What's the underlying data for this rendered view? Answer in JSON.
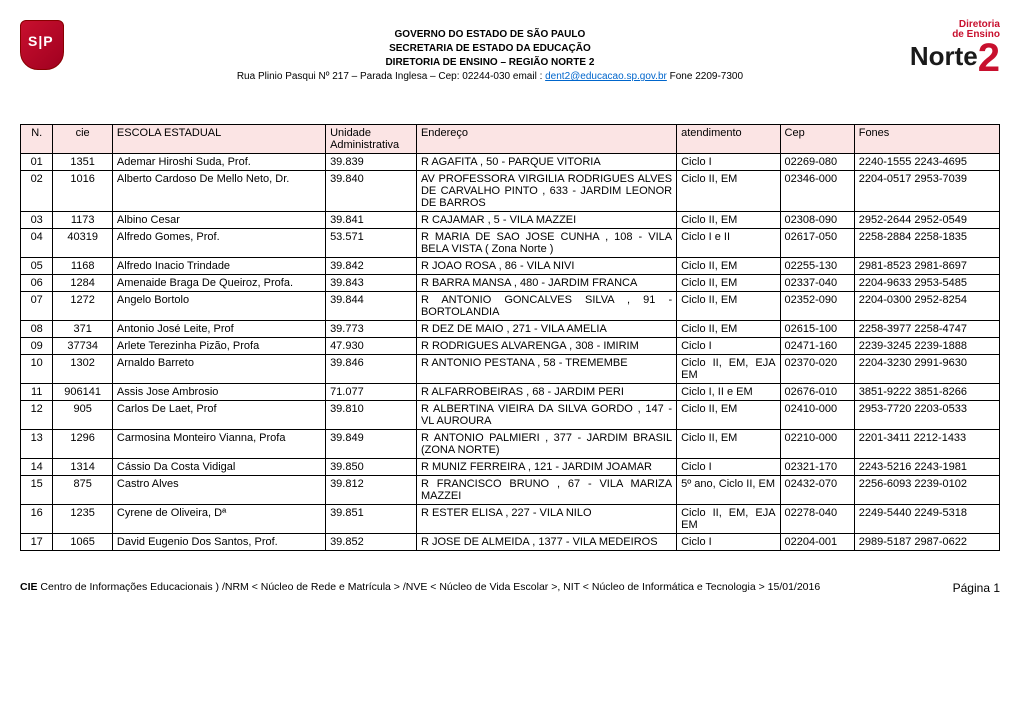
{
  "header": {
    "line1": "GOVERNO DO ESTADO DE SÃO PAULO",
    "line2": "SECRETARIA DE ESTADO DA EDUCAÇÃO",
    "line3": "DIRETORIA DE ENSINO – REGIÃO NORTE 2",
    "line4_pre": "Rua Plinio Pasqui Nº 217 – Parada Inglesa – Cep: 02244-030  email : ",
    "line4_link": "dent2@educacao.sp.gov.br",
    "line4_post": " Fone 2209-7300",
    "logo_small1": "Diretoria",
    "logo_small2": "de Ensino",
    "logo_big": "Norte",
    "logo_num": "2"
  },
  "columns": {
    "n": "N.",
    "cie": "cie",
    "escola": "ESCOLA ESTADUAL",
    "unidade": "Unidade Administrativa",
    "endereco": "Endereço",
    "atendimento": "atendimento",
    "cep": "Cep",
    "fones": "Fones"
  },
  "rows": [
    {
      "n": "01",
      "cie": "1351",
      "escola": "Ademar Hiroshi Suda, Prof.",
      "unid": "39.839",
      "end": "R AGAFITA , 50  - PARQUE VITORIA",
      "at": "Ciclo I",
      "cep": "02269-080",
      "fone": "2240-1555    2243-4695"
    },
    {
      "n": "02",
      "cie": "1016",
      "escola": "Alberto Cardoso De Mello Neto, Dr.",
      "unid": "39.840",
      "end": "AV PROFESSORA VIRGILIA RODRIGUES ALVES DE CARVALHO PINTO , 633  - JARDIM LEONOR DE BARROS",
      "at": "Ciclo II, EM",
      "cep": "02346-000",
      "fone": "2204-0517   2953-7039"
    },
    {
      "n": "03",
      "cie": "1173",
      "escola": "Albino Cesar",
      "unid": "39.841",
      "end": "R CAJAMAR , 5  - VILA MAZZEI",
      "at": "Ciclo II, EM",
      "cep": "02308-090",
      "fone": "2952-2644    2952-0549"
    },
    {
      "n": "04",
      "cie": "40319",
      "escola": "Alfredo Gomes, Prof.",
      "unid": "53.571",
      "end": "R MARIA DE SAO JOSE CUNHA , 108  - VILA BELA VISTA ( Zona Norte )",
      "at": "Ciclo I e II",
      "cep": "02617-050",
      "fone": "2258-2884    2258-1835"
    },
    {
      "n": "05",
      "cie": "1168",
      "escola": "Alfredo Inacio Trindade",
      "unid": "39.842",
      "end": "R JOAO ROSA , 86  - VILA NIVI",
      "at": "Ciclo II, EM",
      "cep": "02255-130",
      "fone": "2981-8523   2981-8697"
    },
    {
      "n": "06",
      "cie": "1284",
      "escola": "Amenaide Braga De Queiroz, Profa.",
      "unid": "39.843",
      "end": "R BARRA MANSA , 480  - JARDIM FRANCA",
      "at": "Ciclo II, EM",
      "cep": "02337-040",
      "fone": "2204-9633    2953-5485"
    },
    {
      "n": "07",
      "cie": "1272",
      "escola": "Angelo Bortolo",
      "unid": "39.844",
      "end": "R ANTONIO GONCALVES SILVA , 91  - BORTOLANDIA",
      "at": "Ciclo II, EM",
      "cep": "02352-090",
      "fone": "2204-0300    2952-8254"
    },
    {
      "n": "08",
      "cie": "371",
      "escola": "Antonio José Leite, Prof",
      "unid": "39.773",
      "end": "R DEZ DE MAIO , 271  - VILA AMELIA",
      "at": "Ciclo II, EM",
      "cep": "02615-100",
      "fone": "2258-3977     2258-4747"
    },
    {
      "n": "09",
      "cie": "37734",
      "escola": "Arlete Terezinha Pizão, Profa",
      "unid": "47.930",
      "end": "R RODRIGUES ALVARENGA , 308  - IMIRIM",
      "at": "Ciclo I",
      "cep": "02471-160",
      "fone": "2239-3245    2239-1888"
    },
    {
      "n": "10",
      "cie": "1302",
      "escola": "Arnaldo Barreto",
      "unid": "39.846",
      "end": "R ANTONIO PESTANA , 58  - TREMEMBE",
      "at": "Ciclo II, EM, EJA EM",
      "cep": "02370-020",
      "fone": "2204-3230    2991-9630"
    },
    {
      "n": "11",
      "cie": "906141",
      "escola": "Assis Jose Ambrosio",
      "unid": "71.077",
      "end": "R ALFARROBEIRAS , 68  - JARDIM PERI",
      "at": "Ciclo I, II e EM",
      "cep": "02676-010",
      "fone": "3851-9222    3851-8266"
    },
    {
      "n": "12",
      "cie": "905",
      "escola": "Carlos De Laet, Prof",
      "unid": "39.810",
      "end": "R ALBERTINA VIEIRA DA SILVA GORDO , 147  - VL AUROURA",
      "at": "Ciclo II, EM",
      "cep": "02410-000",
      "fone": "2953-7720    2203-0533"
    },
    {
      "n": "13",
      "cie": "1296",
      "escola": "Carmosina Monteiro Vianna, Profa",
      "unid": "39.849",
      "end": "R ANTONIO PALMIERI , 377  - JARDIM BRASIL (ZONA NORTE)",
      "at": "Ciclo II, EM",
      "cep": "02210-000",
      "fone": "2201-3411    2212-1433"
    },
    {
      "n": "14",
      "cie": "1314",
      "escola": "Cássio Da Costa Vidigal",
      "unid": "39.850",
      "end": "R MUNIZ FERREIRA , 121  - JARDIM JOAMAR",
      "at": "Ciclo I",
      "cep": "02321-170",
      "fone": "2243-5216    2243-1981"
    },
    {
      "n": "15",
      "cie": "875",
      "escola": "Castro Alves",
      "unid": "39.812",
      "end": "R FRANCISCO BRUNO , 67  - VILA MARIZA MAZZEI",
      "at": "5º ano, Ciclo II, EM",
      "cep": "02432-070",
      "fone": "2256-6093    2239-0102"
    },
    {
      "n": "16",
      "cie": "1235",
      "escola": "Cyrene de Oliveira, Dª",
      "unid": "39.851",
      "end": "R ESTER ELISA , 227  - VILA NILO",
      "at": "Ciclo II, EM, EJA EM",
      "cep": "02278-040",
      "fone": "2249-5440    2249-5318"
    },
    {
      "n": "17",
      "cie": "1065",
      "escola": "David Eugenio Dos Santos, Prof.",
      "unid": "39.852",
      "end": "R JOSE DE ALMEIDA , 1377  - VILA MEDEIROS",
      "at": "Ciclo I",
      "cep": "02204-001",
      "fone": "2989-5187    2987-0622"
    }
  ],
  "footer": {
    "left_bold": "CIE",
    "left_text": " Centro de Informações Educacionais ) /NRM < Núcleo de Rede e Matrícula > /NVE < Núcleo  de Vida Escolar >, NIT < Núcleo de Informática e Tecnologia >    15/01/2016",
    "right": "Página 1"
  }
}
